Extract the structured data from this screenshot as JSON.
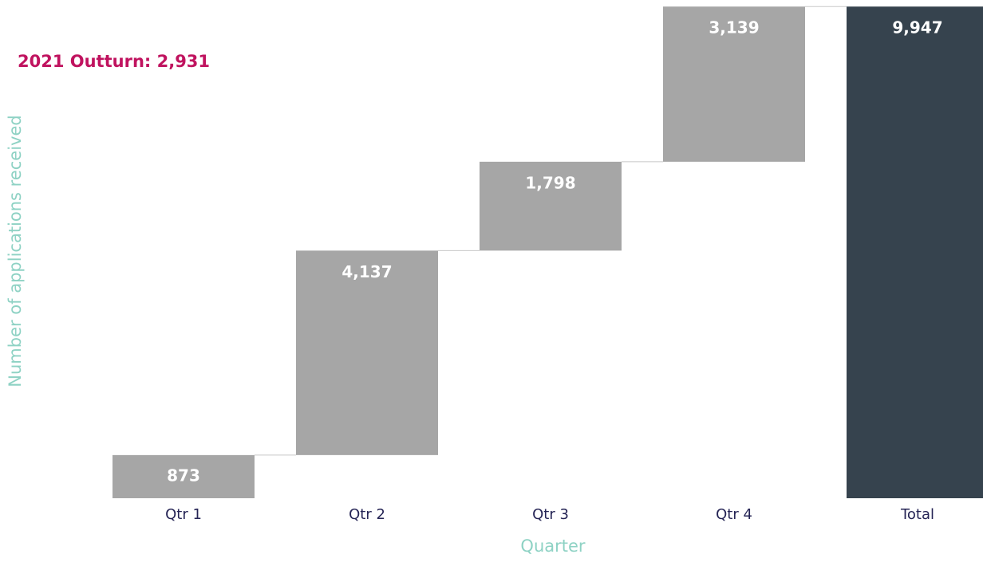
{
  "chart_data": {
    "type": "waterfall",
    "annotation": "2021 Outturn: 2,931",
    "x_label": "Quarter",
    "y_label": "Number of applications received",
    "categories": [
      "Qtr 1",
      "Qtr 2",
      "Qtr 3",
      "Qtr 4",
      "Total"
    ],
    "values": [
      873,
      4137,
      1798,
      3139,
      9947
    ],
    "value_labels": [
      "873",
      "4,137",
      "1,798",
      "3,139",
      "9,947"
    ],
    "is_total": [
      false,
      false,
      false,
      false,
      true
    ],
    "ylim": [
      0,
      10080
    ],
    "colors": {
      "increase": "#a6a6a6",
      "total": "#36434e"
    },
    "axis_label_color": "#8ed2c4",
    "annotation_color": "#c0135f"
  }
}
